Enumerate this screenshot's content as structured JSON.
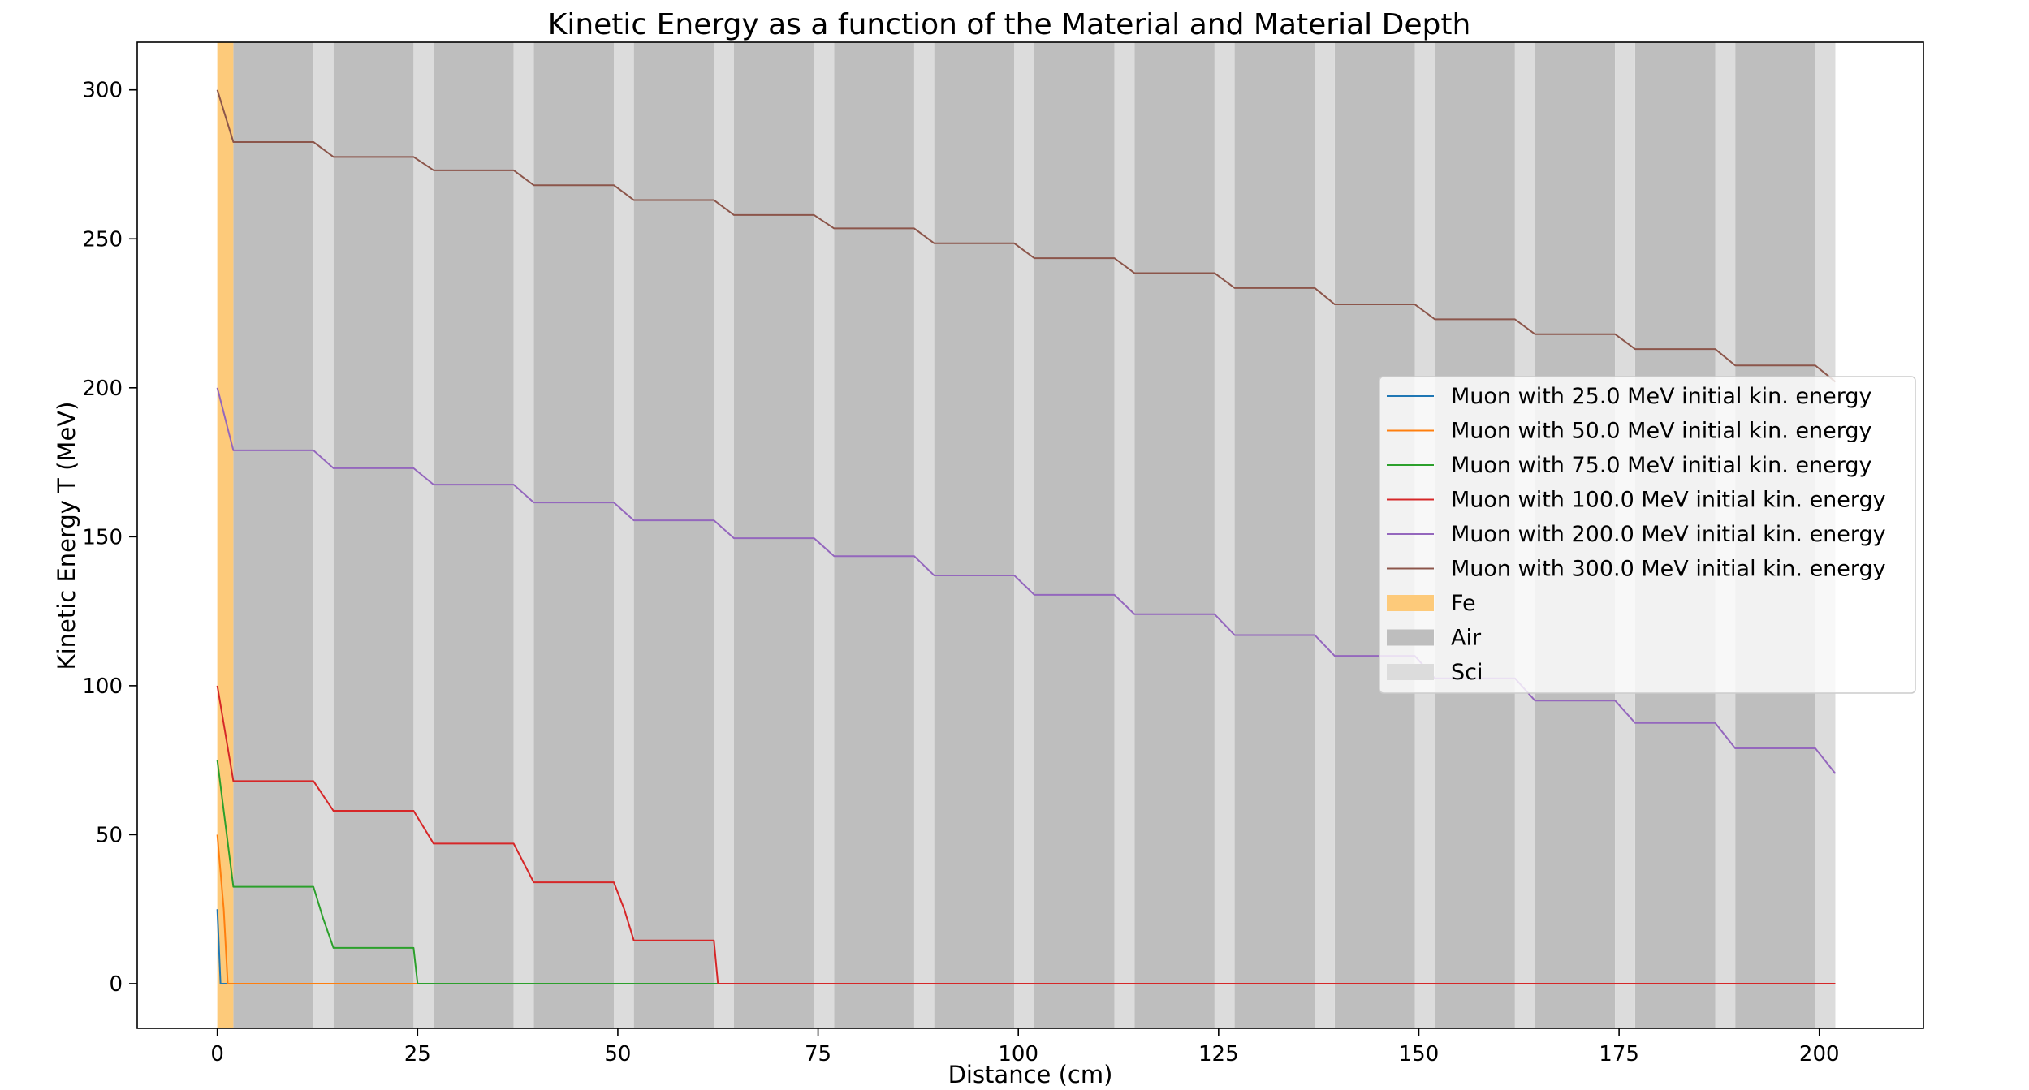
{
  "chart_data": {
    "type": "line",
    "title": "Kinetic Energy as a function of the Material and Material Depth",
    "xlabel": "Distance (cm)",
    "ylabel": "Kinetic Energy T (MeV)",
    "xlim": [
      -10,
      213
    ],
    "ylim": [
      -15,
      316
    ],
    "xticks": [
      0,
      25,
      50,
      75,
      100,
      125,
      150,
      175,
      200
    ],
    "yticks": [
      0,
      50,
      100,
      150,
      200,
      250,
      300
    ],
    "grid": false,
    "legend_position": "center-right",
    "regions": {
      "fe": [
        [
          0,
          2
        ]
      ],
      "air": [
        [
          2,
          12
        ],
        [
          14.5,
          24.5
        ],
        [
          27,
          37
        ],
        [
          39.5,
          49.5
        ],
        [
          52,
          62
        ],
        [
          64.5,
          74.5
        ],
        [
          77,
          87
        ],
        [
          89.5,
          99.5
        ],
        [
          102,
          112
        ],
        [
          114.5,
          124.5
        ],
        [
          127,
          137
        ],
        [
          139.5,
          149.5
        ],
        [
          152,
          162
        ],
        [
          164.5,
          174.5
        ],
        [
          177,
          187
        ],
        [
          189.5,
          199.5
        ]
      ],
      "sci": [
        [
          12,
          14.5
        ],
        [
          24.5,
          27
        ],
        [
          37,
          39.5
        ],
        [
          49.5,
          52
        ],
        [
          62,
          64.5
        ],
        [
          74.5,
          77
        ],
        [
          87,
          89.5
        ],
        [
          99.5,
          102
        ],
        [
          112,
          114.5
        ],
        [
          124.5,
          127
        ],
        [
          137,
          139.5
        ],
        [
          149.5,
          152
        ],
        [
          162,
          164.5
        ],
        [
          174.5,
          177
        ],
        [
          187,
          189.5
        ],
        [
          199.5,
          202
        ]
      ]
    },
    "region_colors": {
      "fe": "#fdca7a",
      "air": "#bebebe",
      "sci": "#dcdcdc"
    },
    "series": [
      {
        "name": "Muon with 25.0 MeV initial kin. energy",
        "color": "#1f77b4",
        "x": [
          0,
          0.4,
          1,
          202
        ],
        "y": [
          25,
          0,
          0,
          0
        ]
      },
      {
        "name": "Muon with 50.0 MeV initial kin. energy",
        "color": "#ff7f0e",
        "x": [
          0,
          0.8,
          1.3,
          202
        ],
        "y": [
          50,
          25,
          0,
          0
        ]
      },
      {
        "name": "Muon with 75.0 MeV initial kin. energy",
        "color": "#2ca02c",
        "x": [
          0,
          2,
          12,
          13.2,
          14.5,
          24.5,
          25,
          202
        ],
        "y": [
          75,
          32.5,
          32.5,
          22,
          12,
          12,
          0,
          0
        ]
      },
      {
        "name": "Muon with 100.0 MeV initial kin. energy",
        "color": "#d62728",
        "x": [
          0,
          2,
          12,
          14.5,
          24.5,
          27,
          37,
          39.5,
          49.5,
          50.8,
          52,
          62,
          62.5,
          202
        ],
        "y": [
          100,
          68,
          68,
          58,
          58,
          47,
          47,
          34,
          34,
          25,
          14.5,
          14.5,
          0,
          0
        ]
      },
      {
        "name": "Muon with 200.0 MeV initial kin. energy",
        "color": "#9467bd",
        "x": [
          0,
          2,
          12,
          14.5,
          24.5,
          27,
          37,
          39.5,
          49.5,
          52,
          62,
          64.5,
          74.5,
          77,
          87,
          89.5,
          99.5,
          102,
          112,
          114.5,
          124.5,
          127,
          137,
          139.5,
          149.5,
          152,
          162,
          164.5,
          174.5,
          177,
          187,
          189.5,
          199.5,
          202
        ],
        "y": [
          200,
          179,
          179,
          173,
          173,
          167.5,
          167.5,
          161.5,
          161.5,
          155.5,
          155.5,
          149.5,
          149.5,
          143.5,
          143.5,
          137,
          137,
          130.5,
          130.5,
          124,
          124,
          117,
          117,
          110,
          110,
          102.5,
          102.5,
          95,
          95,
          87.5,
          87.5,
          79,
          79,
          70.5
        ]
      },
      {
        "name": "Muon with 300.0 MeV initial kin. energy",
        "color": "#8c564b",
        "x": [
          0,
          2,
          12,
          14.5,
          24.5,
          27,
          37,
          39.5,
          49.5,
          52,
          62,
          64.5,
          74.5,
          77,
          87,
          89.5,
          99.5,
          102,
          112,
          114.5,
          124.5,
          127,
          137,
          139.5,
          149.5,
          152,
          162,
          164.5,
          174.5,
          177,
          187,
          189.5,
          199.5,
          202
        ],
        "y": [
          300,
          282.5,
          282.5,
          277.5,
          277.5,
          273,
          273,
          268,
          268,
          263,
          263,
          258,
          258,
          253.5,
          253.5,
          248.5,
          248.5,
          243.5,
          243.5,
          238.5,
          238.5,
          233.5,
          233.5,
          228,
          228,
          223,
          223,
          218,
          218,
          213,
          213,
          207.5,
          207.5,
          202
        ]
      }
    ],
    "legend": [
      {
        "label": "Muon with 25.0 MeV initial kin. energy",
        "kind": "line",
        "color": "#1f77b4"
      },
      {
        "label": "Muon with 50.0 MeV initial kin. energy",
        "kind": "line",
        "color": "#ff7f0e"
      },
      {
        "label": "Muon with 75.0 MeV initial kin. energy",
        "kind": "line",
        "color": "#2ca02c"
      },
      {
        "label": "Muon with 100.0 MeV initial kin. energy",
        "kind": "line",
        "color": "#d62728"
      },
      {
        "label": "Muon with 200.0 MeV initial kin. energy",
        "kind": "line",
        "color": "#9467bd"
      },
      {
        "label": "Muon with 300.0 MeV initial kin. energy",
        "kind": "line",
        "color": "#8c564b"
      },
      {
        "label": "Fe",
        "kind": "patch",
        "color": "#fdca7a"
      },
      {
        "label": "Air",
        "kind": "patch",
        "color": "#bebebe"
      },
      {
        "label": "Sci",
        "kind": "patch",
        "color": "#dcdcdc"
      }
    ]
  }
}
